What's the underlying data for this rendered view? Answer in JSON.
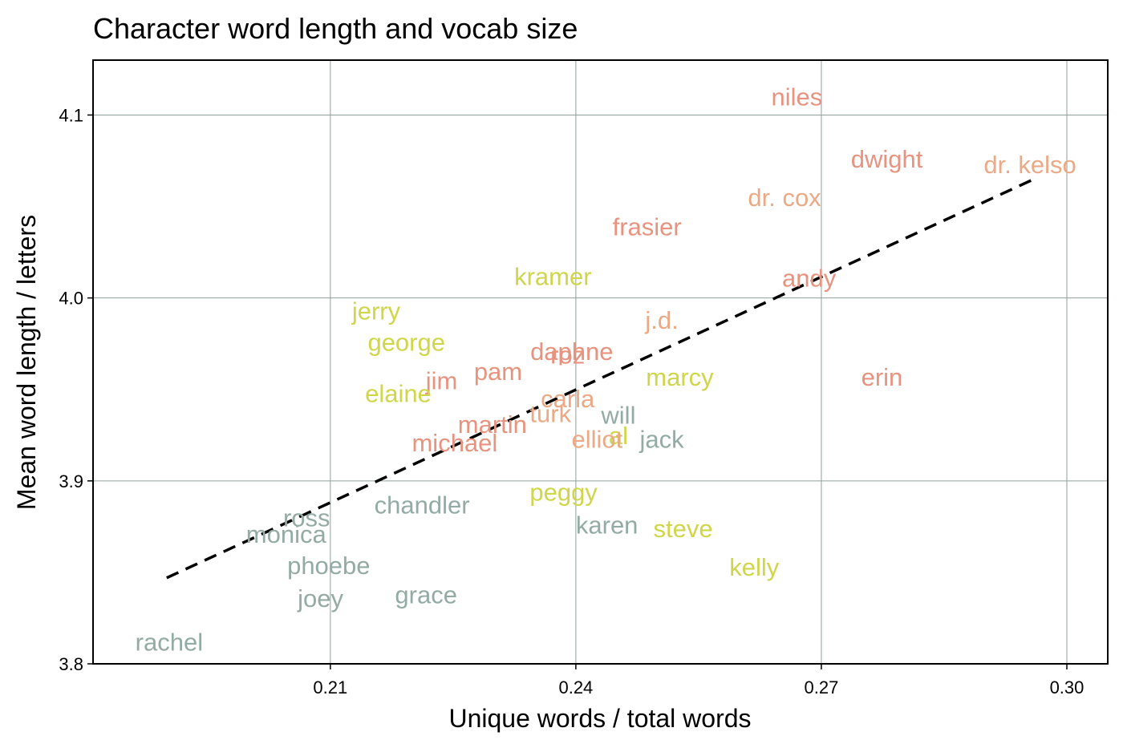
{
  "chart_data": {
    "type": "scatter",
    "title": "Character word length and vocab size",
    "xlabel": "Unique words / total words",
    "ylabel": "Mean word length / letters",
    "xlim": [
      0.181,
      0.305
    ],
    "ylim": [
      3.8,
      4.13
    ],
    "xticks": [
      0.21,
      0.24,
      0.27,
      0.3
    ],
    "xtick_labels": [
      "0.21",
      "0.24",
      "0.27",
      "0.30"
    ],
    "yticks": [
      3.8,
      3.9,
      4.0,
      4.1
    ],
    "ytick_labels": [
      "3.8",
      "3.9",
      "4.0",
      "4.1"
    ],
    "grid": true,
    "trendline": {
      "style": "dashed",
      "color": "#000000",
      "x": [
        0.19,
        0.296
      ],
      "y": [
        3.847,
        4.065
      ]
    },
    "colors": {
      "slate": "#93aba4",
      "yellow": "#cfd64a",
      "salmon": "#e8937f",
      "peach": "#eba985"
    },
    "points": [
      {
        "label": "niles",
        "x": 0.267,
        "y": 4.11,
        "color": "#e8937f"
      },
      {
        "label": "dwight",
        "x": 0.278,
        "y": 4.076,
        "color": "#e8937f"
      },
      {
        "label": "dr. kelso",
        "x": 0.2955,
        "y": 4.073,
        "color": "#eba985"
      },
      {
        "label": "dr. cox",
        "x": 0.2655,
        "y": 4.055,
        "color": "#eba985"
      },
      {
        "label": "frasier",
        "x": 0.2487,
        "y": 4.039,
        "color": "#e8937f"
      },
      {
        "label": "kramer",
        "x": 0.2372,
        "y": 4.012,
        "color": "#cfd64a"
      },
      {
        "label": "andy",
        "x": 0.2685,
        "y": 4.011,
        "color": "#e8937f"
      },
      {
        "label": "jerry",
        "x": 0.2156,
        "y": 3.993,
        "color": "#cfd64a"
      },
      {
        "label": "j.d.",
        "x": 0.2505,
        "y": 3.988,
        "color": "#eba985"
      },
      {
        "label": "george",
        "x": 0.2193,
        "y": 3.976,
        "color": "#cfd64a"
      },
      {
        "label": "daphne",
        "x": 0.2395,
        "y": 3.971,
        "color": "#e8937f"
      },
      {
        "label": "roz",
        "x": 0.239,
        "y": 3.969,
        "color": "#e8937f"
      },
      {
        "label": "pam",
        "x": 0.2305,
        "y": 3.96,
        "color": "#e8937f"
      },
      {
        "label": "marcy",
        "x": 0.2527,
        "y": 3.957,
        "color": "#cfd64a"
      },
      {
        "label": "erin",
        "x": 0.2774,
        "y": 3.957,
        "color": "#e8937f"
      },
      {
        "label": "jim",
        "x": 0.2236,
        "y": 3.955,
        "color": "#e8937f"
      },
      {
        "label": "elaine",
        "x": 0.2183,
        "y": 3.948,
        "color": "#cfd64a"
      },
      {
        "label": "carla",
        "x": 0.239,
        "y": 3.945,
        "color": "#eba985"
      },
      {
        "label": "turk",
        "x": 0.2369,
        "y": 3.937,
        "color": "#eba985"
      },
      {
        "label": "will",
        "x": 0.2452,
        "y": 3.936,
        "color": "#93aba4"
      },
      {
        "label": "martin",
        "x": 0.2298,
        "y": 3.931,
        "color": "#e8937f"
      },
      {
        "label": "al",
        "x": 0.2452,
        "y": 3.925,
        "color": "#cfd64a"
      },
      {
        "label": "elliot",
        "x": 0.2426,
        "y": 3.923,
        "color": "#eba985"
      },
      {
        "label": "jack",
        "x": 0.2505,
        "y": 3.923,
        "color": "#93aba4"
      },
      {
        "label": "michael",
        "x": 0.2252,
        "y": 3.921,
        "color": "#e8937f"
      },
      {
        "label": "peggy",
        "x": 0.2385,
        "y": 3.894,
        "color": "#cfd64a"
      },
      {
        "label": "chandler",
        "x": 0.2212,
        "y": 3.887,
        "color": "#93aba4"
      },
      {
        "label": "ross",
        "x": 0.2071,
        "y": 3.88,
        "color": "#93aba4"
      },
      {
        "label": "karen",
        "x": 0.2438,
        "y": 3.876,
        "color": "#93aba4"
      },
      {
        "label": "steve",
        "x": 0.2531,
        "y": 3.874,
        "color": "#cfd64a"
      },
      {
        "label": "monica",
        "x": 0.2046,
        "y": 3.871,
        "color": "#93aba4"
      },
      {
        "label": "phoebe",
        "x": 0.2098,
        "y": 3.854,
        "color": "#93aba4"
      },
      {
        "label": "kelly",
        "x": 0.2618,
        "y": 3.853,
        "color": "#cfd64a"
      },
      {
        "label": "grace",
        "x": 0.2217,
        "y": 3.838,
        "color": "#93aba4"
      },
      {
        "label": "joey",
        "x": 0.2088,
        "y": 3.836,
        "color": "#93aba4"
      },
      {
        "label": "rachel",
        "x": 0.1903,
        "y": 3.812,
        "color": "#93aba4"
      }
    ]
  }
}
